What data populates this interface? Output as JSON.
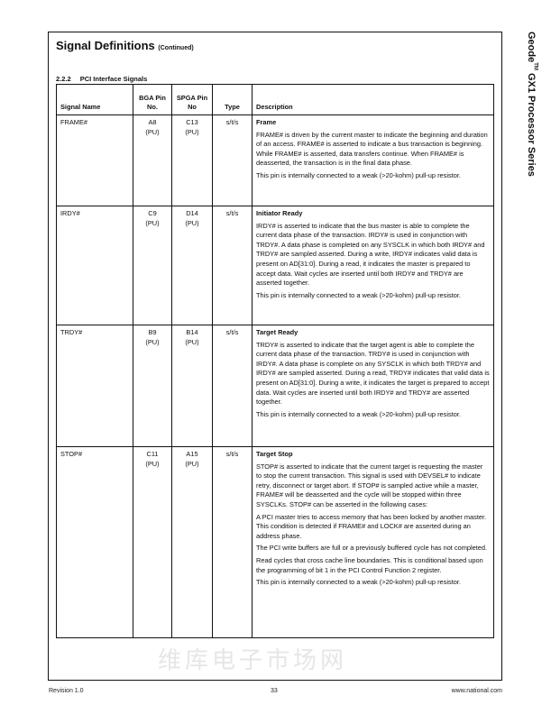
{
  "header": {
    "title": "Signal Definitions",
    "title_suffix": "(Continued)",
    "section_number": "2.2.2",
    "section_title": "PCI Interface Signals"
  },
  "sidebar": {
    "product": "Geode",
    "trademark": "TM",
    "series": "GX1 Processor Series"
  },
  "watermark": "维库电子市场网",
  "table": {
    "headers": [
      "Signal Name",
      "BGA Pin No.",
      "SPGA Pin No",
      "Type",
      "Description"
    ],
    "rows": [
      {
        "signal": "FRAME#",
        "bga": "A8",
        "bga_note": "(PU)",
        "spga": "C13",
        "spga_note": "(PU)",
        "type": "s/t/s",
        "heading": "Frame",
        "paragraphs": [
          "FRAME# is driven by the current master to indicate the beginning and duration of an access. FRAME# is asserted to indicate a bus transaction is beginning. While FRAME# is asserted, data transfers continue. When FRAME# is deasserted, the transaction is in the final data phase.",
          "This pin is internally connected to a weak (>20-kohm) pull-up resistor."
        ]
      },
      {
        "signal": "IRDY#",
        "bga": "C9",
        "bga_note": "(PU)",
        "spga": "D14",
        "spga_note": "(PU)",
        "type": "s/t/s",
        "heading": "Initiator Ready",
        "paragraphs": [
          "IRDY# is asserted to indicate that the bus master is able to complete the current data phase of the transaction. IRDY# is used in conjunction with TRDY#. A data phase is completed on any SYSCLK in which both IRDY# and TRDY# are sampled asserted. During a write, IRDY# indicates valid data is present on AD[31:0]. During a read, it indicates the master is prepared to accept data. Wait cycles are inserted until both IRDY# and TRDY# are asserted together.",
          "This pin is internally connected to a weak (>20-kohm) pull-up resistor."
        ]
      },
      {
        "signal": "TRDY#",
        "bga": "B9",
        "bga_note": "(PU)",
        "spga": "B14",
        "spga_note": "(PU)",
        "type": "s/t/s",
        "heading": "Target Ready",
        "paragraphs": [
          "TRDY# is asserted to indicate that the target agent is able to complete the current data phase of the transaction. TRDY# is used in conjunction with IRDY#. A data phase is complete on any SYSCLK in which both TRDY# and IRDY# are sampled asserted. During a read, TRDY# indicates that valid data is present on AD[31:0]. During a write, it indicates the target is prepared to accept data. Wait cycles are inserted until both IRDY# and TRDY# are asserted together.",
          "This pin is internally connected to a weak (>20-kohm) pull-up resistor."
        ]
      },
      {
        "signal": "STOP#",
        "bga": "C11",
        "bga_note": "(PU)",
        "spga": "A15",
        "spga_note": "(PU)",
        "type": "s/t/s",
        "heading": "Target Stop",
        "paragraphs": [
          "STOP# is asserted to indicate that the current target is requesting the master to stop the current transaction. This signal is used with DEVSEL# to indicate retry, disconnect or target abort. If STOP# is sampled active while a master, FRAME# will be deasserted and the cycle will be stopped within three SYSCLKs. STOP# can be asserted in the following cases:",
          "A PCI master tries to access memory that has been locked by another master. This condition is detected if FRAME# and LOCK# are asserted during an address phase.",
          "The PCI write buffers are full or a previously buffered cycle has not completed.",
          "Read cycles that cross cache line boundaries. This is conditional based upon the programming of bit 1 in the PCI Control Function 2 register.",
          "This pin is internally connected to a weak (>20-kohm) pull-up resistor."
        ]
      }
    ]
  },
  "footer": {
    "revision": "Revision 1.0",
    "page": "33",
    "url": "www.national.com"
  }
}
